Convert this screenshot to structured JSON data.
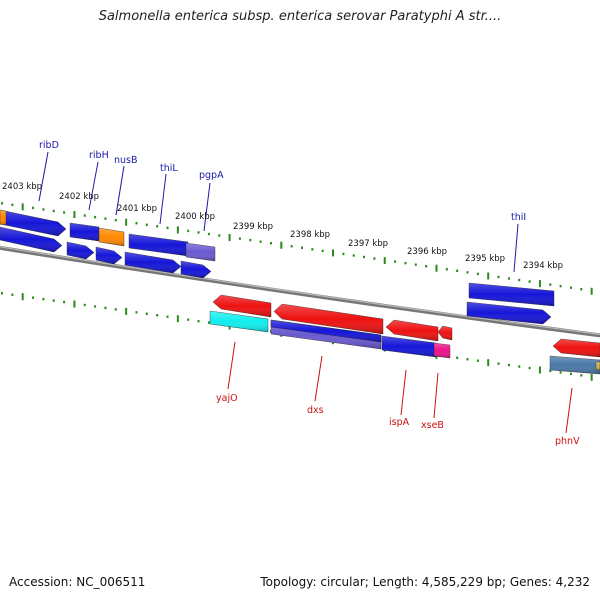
{
  "title": "Salmonella enterica subsp. enterica serovar Paratyphi A str....",
  "footer": {
    "accession": "Accession: NC_006511",
    "summary": "Topology: circular; Length: 4,585,229 bp; Genes: 4,232"
  },
  "colors": {
    "blue": "#1515d8",
    "red": "#ee1111",
    "orange": "#ff8800",
    "cyan": "#11eeee",
    "magenta": "#ee1188",
    "purple": "#6a5ad0",
    "steel": "#4a78a8",
    "tick_green": "#2a8a1a",
    "backbone": "#777777"
  },
  "scale_labels": [
    "2403 kbp",
    "2402 kbp",
    "2401 kbp",
    "2400 kbp",
    "2399 kbp",
    "2398 kbp",
    "2397 kbp",
    "2396 kbp",
    "2395 kbp",
    "2394 kbp"
  ],
  "top_gene_labels": [
    "ribD",
    "ribH",
    "nusB",
    "thiL",
    "pgpA",
    "thiI"
  ],
  "bottom_gene_labels": [
    "yajO",
    "dxs",
    "ispA",
    "xseB",
    "phnV"
  ]
}
